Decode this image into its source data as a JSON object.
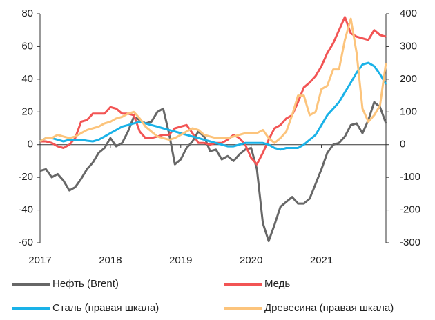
{
  "chart_data": {
    "type": "line",
    "x": [
      2017,
      2017.083,
      2017.167,
      2017.25,
      2017.333,
      2017.417,
      2017.5,
      2017.583,
      2017.667,
      2017.75,
      2017.833,
      2017.917,
      2018,
      2018.083,
      2018.167,
      2018.25,
      2018.333,
      2018.417,
      2018.5,
      2018.583,
      2018.667,
      2018.75,
      2018.833,
      2018.917,
      2019,
      2019.083,
      2019.167,
      2019.25,
      2019.333,
      2019.417,
      2019.5,
      2019.583,
      2019.667,
      2019.75,
      2019.833,
      2019.917,
      2020,
      2020.083,
      2020.167,
      2020.25,
      2020.333,
      2020.417,
      2020.5,
      2020.583,
      2020.667,
      2020.75,
      2020.833,
      2020.917,
      2021,
      2021.083,
      2021.167,
      2021.25,
      2021.333,
      2021.417,
      2021.5,
      2021.583,
      2021.667,
      2021.75,
      2021.833,
      2021.917
    ],
    "xlim": [
      2017,
      2021.917
    ],
    "xticks": [
      2017,
      2018,
      2019,
      2020,
      2021
    ],
    "ylim": [
      -60,
      80
    ],
    "yticks": [
      -60,
      -40,
      -20,
      0,
      20,
      40,
      60,
      80
    ],
    "y2lim": [
      -300,
      400
    ],
    "y2ticks": [
      -300,
      -200,
      -100,
      0,
      100,
      200,
      300,
      400
    ],
    "series": [
      {
        "name": "Нефть (Brent)",
        "color": "#676767",
        "values": [
          -16,
          -15,
          -20,
          -18,
          -22,
          -28,
          -26,
          -21,
          -15,
          -11,
          -5,
          -2,
          4,
          -1,
          1,
          8,
          17,
          15,
          13,
          14,
          20,
          22,
          7,
          -12,
          -9,
          -2,
          2,
          8,
          5,
          -4,
          -3,
          -9,
          -7,
          -10,
          -6,
          -3,
          -2,
          -15,
          -48,
          -59,
          -49,
          -38,
          -35,
          -32,
          -36,
          -36,
          -33,
          -24,
          -15,
          -5,
          0,
          1,
          5,
          12,
          13,
          7,
          15,
          26,
          23,
          13
        ]
      },
      {
        "name": "Медь",
        "color": "#f25454",
        "values": [
          2,
          2,
          1,
          -1,
          -2,
          0,
          4,
          14,
          15,
          19,
          19,
          19,
          23,
          22,
          19,
          19,
          18,
          8,
          4,
          4,
          5,
          6,
          6,
          10,
          11,
          12,
          7,
          1,
          1,
          0,
          1,
          1,
          3,
          6,
          4,
          0,
          -8,
          -12,
          -5,
          3,
          10,
          12,
          16,
          18,
          26,
          35,
          38,
          42,
          48,
          56,
          62,
          70,
          78,
          68,
          66,
          65,
          64,
          70,
          67,
          66
        ]
      },
      {
        "name": "Сталь (правая шкала)",
        "color": "#1ab2e8",
        "axis": "y2",
        "values": [
          10,
          20,
          20,
          15,
          10,
          15,
          15,
          15,
          12,
          10,
          15,
          25,
          35,
          45,
          55,
          60,
          65,
          70,
          65,
          60,
          55,
          50,
          45,
          40,
          35,
          30,
          25,
          20,
          15,
          10,
          5,
          0,
          -5,
          -5,
          0,
          5,
          5,
          5,
          5,
          0,
          -10,
          -15,
          -10,
          -10,
          -10,
          0,
          15,
          30,
          60,
          90,
          110,
          130,
          160,
          190,
          220,
          245,
          250,
          240,
          215,
          185
        ]
      },
      {
        "name": "Древесина (правая шкала)",
        "color": "#fcc47c",
        "axis": "y2",
        "values": [
          10,
          20,
          20,
          30,
          25,
          20,
          25,
          35,
          45,
          50,
          55,
          65,
          70,
          80,
          85,
          95,
          100,
          80,
          55,
          40,
          25,
          20,
          15,
          20,
          30,
          40,
          50,
          45,
          30,
          25,
          20,
          20,
          20,
          25,
          30,
          35,
          35,
          35,
          45,
          20,
          5,
          20,
          40,
          90,
          150,
          150,
          90,
          100,
          170,
          180,
          230,
          230,
          320,
          385,
          280,
          110,
          70,
          90,
          120,
          250
        ]
      }
    ]
  }
}
